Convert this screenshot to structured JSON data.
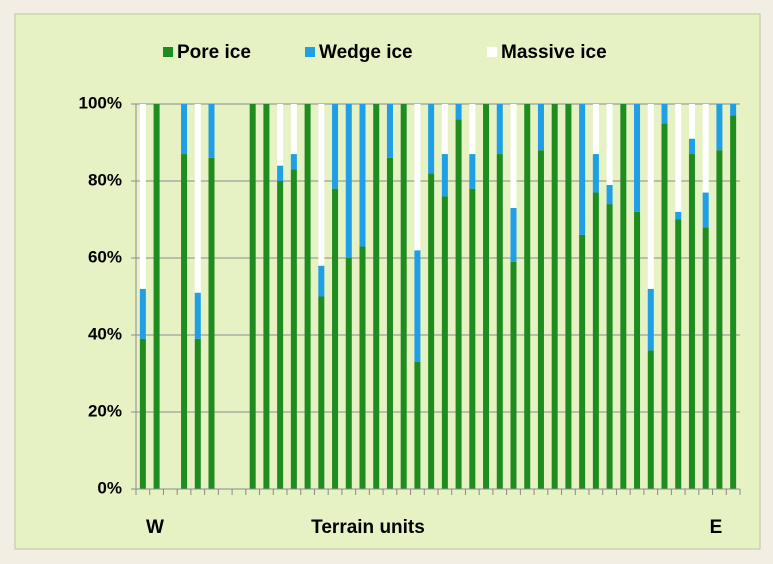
{
  "chart_data": {
    "type": "stacked_bar",
    "categories": [
      null,
      null,
      null,
      null,
      null,
      null,
      null,
      null,
      null,
      null,
      null,
      null,
      null,
      null,
      null,
      null,
      null,
      null,
      null,
      null,
      null,
      null,
      null,
      null,
      null,
      null,
      null,
      null,
      null,
      null,
      null,
      null,
      null,
      null,
      null,
      null,
      null,
      null,
      null,
      null,
      null,
      null,
      null,
      null
    ],
    "series": [
      {
        "name": "Pore ice",
        "color": "#1f8c1f",
        "values": [
          39,
          100,
          null,
          87,
          39,
          86,
          null,
          null,
          100,
          100,
          80,
          83,
          100,
          50,
          78,
          60,
          63,
          100,
          86,
          100,
          33,
          82,
          76,
          96,
          78,
          100,
          87,
          59,
          100,
          88,
          100,
          100,
          66,
          77,
          74,
          100,
          72,
          36,
          95,
          70,
          87,
          68,
          88,
          97
        ]
      },
      {
        "name": "Wedge ice",
        "color": "#1e9fe6",
        "values": [
          13,
          0,
          null,
          13,
          12,
          14,
          null,
          null,
          0,
          0,
          4,
          4,
          0,
          8,
          22,
          40,
          37,
          0,
          14,
          0,
          29,
          18,
          11,
          4,
          9,
          0,
          13,
          14,
          0,
          12,
          0,
          0,
          34,
          10,
          5,
          0,
          28,
          16,
          5,
          2,
          4,
          9,
          12,
          3
        ]
      },
      {
        "name": "Massive ice",
        "color": "#ffffff",
        "values": [
          48,
          0,
          null,
          0,
          49,
          0,
          null,
          null,
          0,
          0,
          16,
          13,
          0,
          42,
          0,
          0,
          0,
          0,
          0,
          0,
          38,
          0,
          13,
          0,
          13,
          0,
          0,
          27,
          0,
          0,
          0,
          0,
          0,
          13,
          21,
          0,
          0,
          48,
          0,
          28,
          9,
          23,
          0,
          0
        ]
      }
    ],
    "ylim": [
      0,
      100
    ],
    "yticks": [
      {
        "value": 0,
        "label": "0%"
      },
      {
        "value": 20,
        "label": "20%"
      },
      {
        "value": 40,
        "label": "40%"
      },
      {
        "value": 60,
        "label": "60%"
      },
      {
        "value": 80,
        "label": "80%"
      },
      {
        "value": 100,
        "label": "100%"
      }
    ],
    "grid": true,
    "legend": "top",
    "xlabel": "Terrain units",
    "annotations": [
      "W",
      "E"
    ]
  }
}
